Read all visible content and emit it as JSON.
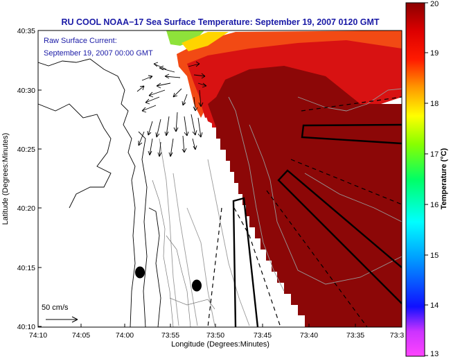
{
  "title": "RU COOL  NOAA−17  Sea Surface Temperature:  September 19, 2007 0120 GMT",
  "current_note": {
    "line1": "Raw Surface Current:",
    "line2": "September 19, 2007 00:00 GMT"
  },
  "scale_arrow_label": "50 cm/s",
  "x_axis": {
    "label": "Longitude (Degrees:Minutes)",
    "ticks": [
      "74:10",
      "74:05",
      "74:00",
      "73:55",
      "73:50",
      "73:45",
      "73:40",
      "73:35",
      "73:3"
    ]
  },
  "y_axis": {
    "label": "Latitude (Degrees:Minutes)",
    "ticks": [
      "40:35",
      "40:30",
      "40:25",
      "40:20",
      "40:15",
      "40:10"
    ]
  },
  "colorbar": {
    "label": "Temperature (°C)",
    "ticks": [
      "20",
      "19",
      "18",
      "17",
      "16",
      "15",
      "14",
      "13"
    ],
    "range": [
      13,
      20
    ],
    "colors": [
      "#ff33ff",
      "#1010ff",
      "#00ffff",
      "#00ff66",
      "#ffff00",
      "#ff8800",
      "#ff0000",
      "#8b0000"
    ]
  },
  "colors": {
    "warm_water": "#8c0707",
    "mid_water": "#d01010",
    "cooler_water": "#f24a14",
    "land_background": "#ffffff",
    "title_text": "#1a1aa6"
  }
}
